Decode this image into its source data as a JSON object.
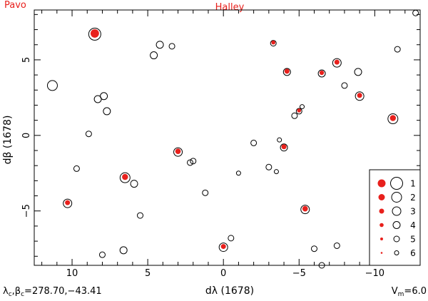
{
  "header": {
    "left_label": "Pavo",
    "center_label": "Halley"
  },
  "footer": {
    "left_text": "λc,βc=278.70,−43.41",
    "right_text": "Vm=6.0"
  },
  "colors": {
    "accent": "#e8201c",
    "axis": "#000000"
  },
  "chart_data": {
    "type": "scatter",
    "xlabel": "dλ (1678)",
    "ylabel": "dβ (1678)",
    "xlim": [
      12.5,
      -13.0
    ],
    "ylim": [
      -8.6,
      8.3
    ],
    "x_ticks": [
      10,
      5,
      0,
      -5,
      -10
    ],
    "y_ticks": [
      5,
      0,
      -5
    ],
    "x_tick_labels": [
      "10",
      "5",
      "0",
      "−5",
      "−10"
    ],
    "y_tick_labels": [
      "5",
      "0",
      "−5"
    ],
    "legend": {
      "position": "bottom-right",
      "entries": [
        {
          "label": "1",
          "red_size": 5.5,
          "ring_size": 8.5
        },
        {
          "label": "2",
          "red_size": 4.5,
          "ring_size": 7.0
        },
        {
          "label": "3",
          "red_size": 3.5,
          "ring_size": 6.0
        },
        {
          "label": "4",
          "red_size": 2.8,
          "ring_size": 5.0
        },
        {
          "label": "5",
          "red_size": 2.0,
          "ring_size": 4.0
        },
        {
          "label": "6",
          "red_size": 1.3,
          "ring_size": 3.0
        }
      ]
    },
    "comet_positions": [
      {
        "x": 8.5,
        "y": 6.7,
        "size": 8.5
      },
      {
        "x": 10.3,
        "y": -4.5,
        "size": 5.0
      },
      {
        "x": 6.5,
        "y": -2.8,
        "size": 6.0
      },
      {
        "x": 3.0,
        "y": -1.1,
        "size": 5.5
      },
      {
        "x": 0.0,
        "y": -7.4,
        "size": 5.0
      },
      {
        "x": -4.0,
        "y": -0.8,
        "size": 5.0
      },
      {
        "x": -5.4,
        "y": -4.9,
        "size": 5.5
      },
      {
        "x": -4.2,
        "y": 4.2,
        "size": 5.0
      },
      {
        "x": -6.5,
        "y": 4.1,
        "size": 4.5
      },
      {
        "x": -7.5,
        "y": 4.8,
        "size": 5.0
      },
      {
        "x": -9.0,
        "y": 2.6,
        "size": 5.0
      },
      {
        "x": -11.2,
        "y": 1.1,
        "size": 6.0
      },
      {
        "x": -5.0,
        "y": 1.6,
        "size": 4.0
      },
      {
        "x": -3.3,
        "y": 6.1,
        "size": 4.0
      }
    ],
    "star_magnitudes": [
      {
        "x": 8.5,
        "y": 6.7,
        "mag": 1
      },
      {
        "x": 10.3,
        "y": -4.5,
        "mag": 3
      },
      {
        "x": 6.5,
        "y": -2.8,
        "mag": 2
      },
      {
        "x": 3.0,
        "y": -1.1,
        "mag": 3
      },
      {
        "x": 0.0,
        "y": -7.4,
        "mag": 3
      },
      {
        "x": -4.0,
        "y": -0.8,
        "mag": 4
      },
      {
        "x": -5.4,
        "y": -4.9,
        "mag": 3
      },
      {
        "x": -4.2,
        "y": 4.2,
        "mag": 4
      },
      {
        "x": -6.5,
        "y": 4.1,
        "mag": 4
      },
      {
        "x": -7.5,
        "y": 4.8,
        "mag": 3
      },
      {
        "x": -9.0,
        "y": 2.6,
        "mag": 3
      },
      {
        "x": -11.2,
        "y": 1.1,
        "mag": 2
      },
      {
        "x": -5.0,
        "y": 1.6,
        "mag": 5
      },
      {
        "x": -3.3,
        "y": 6.1,
        "mag": 5
      },
      {
        "x": 11.3,
        "y": 3.3,
        "mag": 2
      },
      {
        "x": 8.3,
        "y": 2.4,
        "mag": 4
      },
      {
        "x": 7.9,
        "y": 2.6,
        "mag": 4
      },
      {
        "x": 7.7,
        "y": 1.6,
        "mag": 4
      },
      {
        "x": 8.9,
        "y": 0.1,
        "mag": 5
      },
      {
        "x": 9.7,
        "y": -2.2,
        "mag": 5
      },
      {
        "x": 5.9,
        "y": -3.2,
        "mag": 4
      },
      {
        "x": 5.5,
        "y": -5.3,
        "mag": 5
      },
      {
        "x": 4.6,
        "y": 5.3,
        "mag": 4
      },
      {
        "x": 4.2,
        "y": 6.0,
        "mag": 4
      },
      {
        "x": 3.4,
        "y": 5.9,
        "mag": 5
      },
      {
        "x": 2.2,
        "y": -1.8,
        "mag": 5
      },
      {
        "x": 2.0,
        "y": -1.7,
        "mag": 5
      },
      {
        "x": 1.2,
        "y": -3.8,
        "mag": 5
      },
      {
        "x": 6.6,
        "y": -7.6,
        "mag": 4
      },
      {
        "x": 8.0,
        "y": -7.9,
        "mag": 5
      },
      {
        "x": -0.5,
        "y": -6.8,
        "mag": 5
      },
      {
        "x": -1.0,
        "y": -2.5,
        "mag": 6
      },
      {
        "x": -2.0,
        "y": -0.5,
        "mag": 5
      },
      {
        "x": -3.0,
        "y": -2.1,
        "mag": 5
      },
      {
        "x": -3.5,
        "y": -2.4,
        "mag": 6
      },
      {
        "x": -3.7,
        "y": -0.3,
        "mag": 6
      },
      {
        "x": -4.7,
        "y": 1.3,
        "mag": 5
      },
      {
        "x": -5.2,
        "y": 1.9,
        "mag": 6
      },
      {
        "x": -8.0,
        "y": 3.3,
        "mag": 5
      },
      {
        "x": -8.9,
        "y": 4.2,
        "mag": 4
      },
      {
        "x": -11.5,
        "y": 5.7,
        "mag": 5
      },
      {
        "x": -12.7,
        "y": 8.1,
        "mag": 5
      },
      {
        "x": -6.0,
        "y": -7.5,
        "mag": 5
      },
      {
        "x": -7.5,
        "y": -7.3,
        "mag": 5
      },
      {
        "x": -6.5,
        "y": -8.6,
        "mag": 5
      }
    ]
  }
}
